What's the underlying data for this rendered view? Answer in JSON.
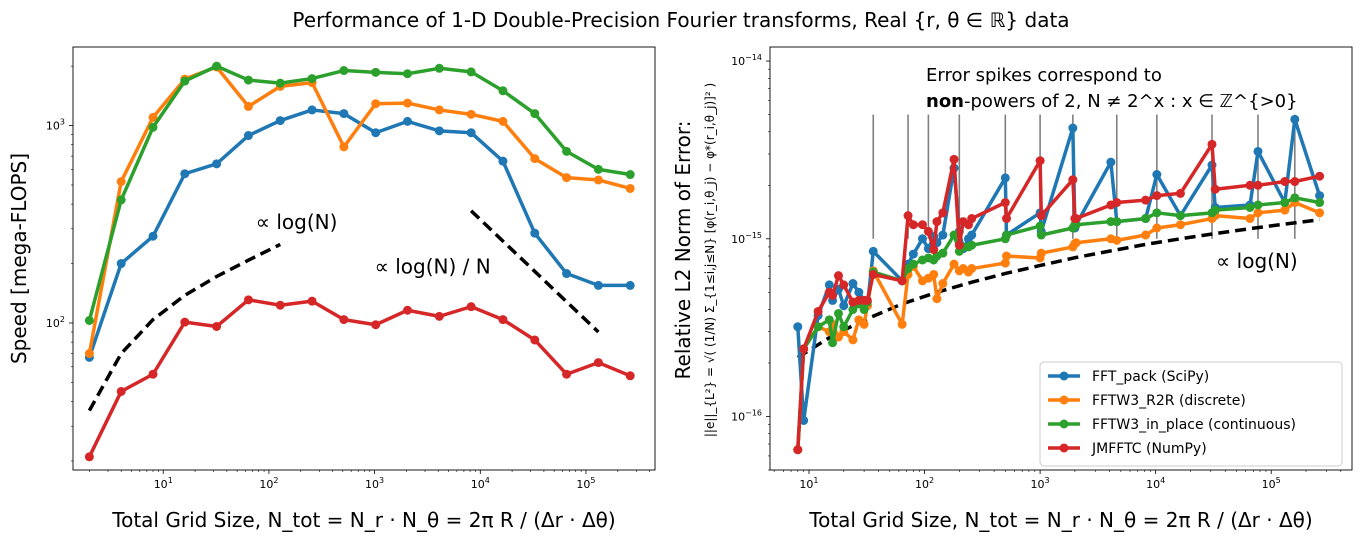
{
  "title": "Performance of 1-D Double-Precision Fourier transforms, Real {r, θ ∈ ℝ} data",
  "chart_data": [
    {
      "type": "line",
      "xscale": "log",
      "yscale": "log",
      "xlim": [
        1.4,
        450000
      ],
      "ylim": [
        18,
        2500
      ],
      "ylabel": "Speed [mega-FLOPS]",
      "xlabel": "Total Grid Size, N_tot = N_r · N_θ = 2π R / (Δr · Δθ)",
      "xticks": [
        {
          "v": 10,
          "b": "10",
          "e": "1"
        },
        {
          "v": 100,
          "b": "10",
          "e": "2"
        },
        {
          "v": 1000,
          "b": "10",
          "e": "3"
        },
        {
          "v": 10000,
          "b": "10",
          "e": "4"
        },
        {
          "v": 100000,
          "b": "10",
          "e": "5"
        }
      ],
      "yticks": [
        {
          "v": 100,
          "b": "10",
          "e": "2"
        },
        {
          "v": 1000,
          "b": "10",
          "e": "3"
        }
      ],
      "series": [
        {
          "color": "#1f77b4",
          "x": [
            2,
            4,
            8,
            16,
            32,
            64,
            128,
            256,
            512,
            1024,
            2048,
            4096,
            8192,
            16384,
            32768,
            65536,
            131072,
            262144
          ],
          "y": [
            67,
            200,
            275,
            570,
            640,
            890,
            1060,
            1200,
            1150,
            920,
            1050,
            940,
            920,
            660,
            285,
            178,
            155,
            155
          ]
        },
        {
          "color": "#ff7f0e",
          "x": [
            2,
            4,
            8,
            16,
            32,
            64,
            128,
            256,
            512,
            1024,
            2048,
            4096,
            8192,
            16384,
            32768,
            65536,
            131072,
            262144
          ],
          "y": [
            70,
            520,
            1100,
            1720,
            1980,
            1250,
            1580,
            1650,
            780,
            1290,
            1300,
            1200,
            1140,
            1050,
            680,
            545,
            530,
            480
          ]
        },
        {
          "color": "#2ca02c",
          "x": [
            2,
            4,
            8,
            16,
            32,
            64,
            128,
            256,
            512,
            1024,
            2048,
            4096,
            8192,
            16384,
            32768,
            65536,
            131072,
            262144
          ],
          "y": [
            103,
            420,
            980,
            1680,
            2000,
            1700,
            1640,
            1730,
            1900,
            1860,
            1830,
            1950,
            1870,
            1500,
            1150,
            740,
            600,
            565
          ]
        },
        {
          "color": "#d62728",
          "x": [
            2,
            4,
            8,
            16,
            32,
            64,
            128,
            256,
            512,
            1024,
            2048,
            4096,
            8192,
            16384,
            32768,
            65536,
            131072,
            262144
          ],
          "y": [
            21,
            45,
            55,
            101,
            96,
            131,
            123,
            129,
            104,
            98,
            116,
            108,
            121,
            104,
            82,
            55,
            63,
            54
          ]
        }
      ],
      "refs": [
        {
          "x": [
            2,
            4,
            8,
            16,
            32,
            64,
            128
          ],
          "y": [
            36,
            70,
            104,
            138,
            172,
            208,
            250
          ]
        },
        {
          "x": [
            8192,
            131072
          ],
          "y": [
            370,
            90
          ]
        }
      ],
      "annotations": [
        {
          "text": "∝ log(N)",
          "x": 75,
          "y": 300
        },
        {
          "text": "∝ log(N) / N",
          "x": 1000,
          "y": 178
        }
      ]
    },
    {
      "type": "line",
      "xscale": "log",
      "yscale": "log",
      "xlim": [
        4.6,
        500000
      ],
      "ylim": [
        5e-17,
        1.2e-14
      ],
      "ylabel": "Relative L2 Norm of Error:",
      "ylabel_formula": "||e||_{L²} = √( (1/N) Σ_{1≤i,j≤N} [φ(r_i,θ_j) − φ*(r_i,θ_j)]² )",
      "xlabel": "Total Grid Size, N_tot = N_r · N_θ = 2π R / (Δr · Δθ)",
      "xticks": [
        {
          "v": 10,
          "b": "10",
          "e": "1"
        },
        {
          "v": 100,
          "b": "10",
          "e": "2"
        },
        {
          "v": 1000,
          "b": "10",
          "e": "3"
        },
        {
          "v": 10000,
          "b": "10",
          "e": "4"
        },
        {
          "v": 100000,
          "b": "10",
          "e": "5"
        }
      ],
      "yticks": [
        {
          "v": 1e-16,
          "b": "10",
          "e": "−16"
        },
        {
          "v": 1e-15,
          "b": "10",
          "e": "−15"
        },
        {
          "v": 1e-14,
          "b": "10",
          "e": "−14"
        }
      ],
      "series": [
        {
          "name": "FFT_pack (SciPy)",
          "color": "#1f77b4",
          "x": [
            8,
            9,
            12,
            15,
            16,
            18,
            20,
            24,
            27,
            30,
            32,
            36,
            64,
            72,
            80,
            96,
            108,
            120,
            128,
            144,
            180,
            200,
            216,
            240,
            256,
            500,
            512,
            1000,
            1024,
            1920,
            2000,
            2048,
            4096,
            4608,
            8192,
            10240,
            16384,
            30720,
            32768,
            65536,
            76800,
            131072,
            160000,
            262144
          ],
          "y": [
            3.2e-16,
            9.5e-17,
            3.7e-16,
            5.5e-16,
            4.5e-16,
            5.2e-16,
            4.2e-16,
            5.6e-16,
            5e-16,
            4.5e-16,
            4.2e-16,
            8.5e-16,
            5.8e-16,
            7.2e-16,
            8.2e-16,
            1e-15,
            8.8e-16,
            1.03e-15,
            9.5e-16,
            1.05e-15,
            2.5e-15,
            1.1e-15,
            8.8e-16,
            1e-15,
            1.05e-15,
            2.2e-15,
            1.05e-15,
            1.4e-15,
            1.1e-15,
            4.2e-15,
            1.15e-15,
            1.2e-15,
            2.7e-15,
            1.25e-15,
            1.3e-15,
            2.3e-15,
            1.35e-15,
            2.6e-15,
            1.5e-15,
            1.55e-15,
            3.1e-15,
            1.6e-15,
            4.7e-15,
            1.75e-15
          ]
        },
        {
          "name": "FFTW3_R2R (discrete)",
          "color": "#ff7f0e",
          "x": [
            8,
            9,
            12,
            15,
            16,
            18,
            20,
            24,
            27,
            30,
            32,
            36,
            64,
            72,
            80,
            96,
            108,
            120,
            128,
            144,
            180,
            200,
            216,
            240,
            256,
            500,
            512,
            1000,
            1024,
            1920,
            2000,
            2048,
            4096,
            4608,
            8192,
            10240,
            16384,
            30720,
            32768,
            65536,
            76800,
            131072,
            160000,
            262144
          ],
          "y": [
            6.5e-17,
            2.4e-16,
            3.2e-16,
            3e-16,
            3.3e-16,
            2.8e-16,
            3e-16,
            2.7e-16,
            3.5e-16,
            3.3e-16,
            4.2e-16,
            6.6e-16,
            3.3e-16,
            6.3e-16,
            7e-16,
            5.8e-16,
            6e-16,
            6.3e-16,
            4.6e-16,
            5.6e-16,
            7.2e-16,
            6.6e-16,
            6.8e-16,
            6.5e-16,
            6.8e-16,
            7.3e-16,
            8e-16,
            7.8e-16,
            8.3e-16,
            9e-16,
            9.4e-16,
            9.5e-16,
            1e-15,
            9.8e-16,
            1.05e-15,
            1.15e-15,
            1.2e-15,
            1.3e-15,
            1.35e-15,
            1.3e-15,
            1.4e-15,
            1.45e-15,
            1.6e-15,
            1.4e-15
          ]
        },
        {
          "name": "FFTW3_in_place (continuous)",
          "color": "#2ca02c",
          "x": [
            8,
            9,
            12,
            15,
            16,
            18,
            20,
            24,
            27,
            30,
            32,
            36,
            64,
            72,
            80,
            96,
            108,
            120,
            128,
            144,
            180,
            200,
            216,
            240,
            256,
            500,
            512,
            1000,
            1024,
            1920,
            2000,
            2048,
            4096,
            4608,
            8192,
            10240,
            16384,
            30720,
            32768,
            65536,
            76800,
            131072,
            160000,
            262144
          ],
          "y": [
            6.5e-17,
            2.4e-16,
            3.2e-16,
            3.5e-16,
            2.6e-16,
            3.8e-16,
            3.2e-16,
            4e-16,
            4.3e-16,
            4e-16,
            4.4e-16,
            6.5e-16,
            5.8e-16,
            6.8e-16,
            7.2e-16,
            7.6e-16,
            7.8e-16,
            7.6e-16,
            8e-16,
            8.3e-16,
            1.05e-15,
            8.5e-16,
            9e-16,
            9e-16,
            9.2e-16,
            1e-15,
            1.05e-15,
            1.18e-15,
            1.05e-15,
            1.15e-15,
            1.2e-15,
            1.2e-15,
            1.25e-15,
            1.25e-15,
            1.3e-15,
            1.4e-15,
            1.35e-15,
            1.4e-15,
            1.45e-15,
            1.5e-15,
            1.55e-15,
            1.6e-15,
            1.7e-15,
            1.6e-15
          ]
        },
        {
          "name": "JMFFTC (NumPy)",
          "color": "#d62728",
          "x": [
            8,
            9,
            12,
            15,
            16,
            18,
            20,
            24,
            27,
            30,
            32,
            36,
            64,
            72,
            80,
            96,
            108,
            120,
            128,
            144,
            180,
            200,
            216,
            240,
            256,
            500,
            512,
            1000,
            1024,
            1920,
            2000,
            2048,
            4096,
            4608,
            8192,
            10240,
            16384,
            30720,
            32768,
            65536,
            76800,
            131072,
            160000,
            262144
          ],
          "y": [
            6.5e-17,
            2.4e-16,
            3.9e-16,
            5e-16,
            4.8e-16,
            6.2e-16,
            5.5e-16,
            4.4e-16,
            4.5e-16,
            4.5e-16,
            4.5e-16,
            6.3e-16,
            5.8e-16,
            1.35e-15,
            1.2e-15,
            1.2e-15,
            1.1e-15,
            8.7e-16,
            1.25e-15,
            1.4e-15,
            2.8e-15,
            9.2e-16,
            1.25e-15,
            1.2e-15,
            1.3e-15,
            1.6e-15,
            1.3e-15,
            2.75e-15,
            1.35e-15,
            2.15e-15,
            1.3e-15,
            1.3e-15,
            1.55e-15,
            1.6e-15,
            1.65e-15,
            1.75e-15,
            1.8e-15,
            3.4e-15,
            1.9e-15,
            2e-15,
            2e-15,
            2.1e-15,
            2.1e-15,
            2.25e-15
          ]
        }
      ],
      "ref": {
        "x": [
          8,
          16,
          32,
          64,
          128,
          256,
          512,
          1024,
          2048,
          4096,
          8192,
          16384,
          32768,
          65536,
          131072,
          262144
        ],
        "y": [
          2.15e-16,
          2.85e-16,
          3.55e-16,
          4.3e-16,
          5e-16,
          5.7e-16,
          6.4e-16,
          7.1e-16,
          7.85e-16,
          8.55e-16,
          9.3e-16,
          1e-15,
          1.07e-15,
          1.14e-15,
          1.21e-15,
          1.28e-15
        ]
      },
      "spike_lines": [
        {
          "x": 36,
          "y": [
            1e-15,
            5e-15
          ]
        },
        {
          "x": 72,
          "y": [
            1e-15,
            5e-15
          ]
        },
        {
          "x": 108,
          "y": [
            1e-15,
            5e-15
          ]
        },
        {
          "x": 200,
          "y": [
            1e-15,
            5e-15
          ]
        },
        {
          "x": 500,
          "y": [
            1e-15,
            5e-15
          ]
        },
        {
          "x": 1000,
          "y": [
            1e-15,
            5e-15
          ]
        },
        {
          "x": 1920,
          "y": [
            1e-15,
            5e-15
          ]
        },
        {
          "x": 4608,
          "y": [
            1e-15,
            5e-15
          ]
        },
        {
          "x": 10240,
          "y": [
            1e-15,
            5e-15
          ]
        },
        {
          "x": 30720,
          "y": [
            1e-15,
            5e-15
          ]
        },
        {
          "x": 76800,
          "y": [
            1e-15,
            5e-15
          ]
        },
        {
          "x": 160000,
          "y": [
            1e-15,
            5e-15
          ]
        }
      ],
      "annotations": [
        {
          "text": "Error spikes correspond to"
        },
        {
          "text_bold": "non",
          "text_rest": "-powers of 2, N ≠ 2^x : x ∈ ℤ^{>0}"
        },
        {
          "text": "∝ log(N)"
        }
      ],
      "legend_position": "lower-right"
    }
  ]
}
